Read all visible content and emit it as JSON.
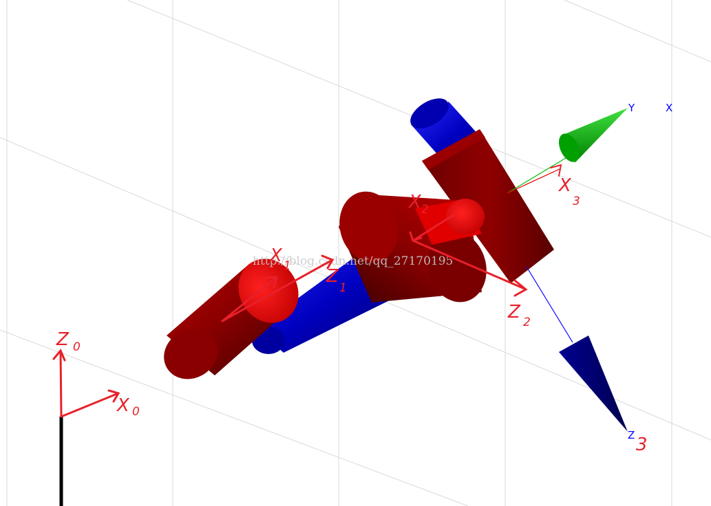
{
  "scene": {
    "background": "#ffffff",
    "grid_color": "#d9d9d9",
    "link_color": "#8b0000",
    "joint_axis_color": "#0000c8",
    "annotation_color": "#e8202a",
    "base_color": "#000000"
  },
  "axis_labels": {
    "y": "Y",
    "x": "X",
    "z": "Z",
    "y_color": "#0000ff",
    "x_color": "#0000ff",
    "z_color": "#0000ff"
  },
  "frame_arrows": {
    "y_color": "#00a000",
    "z_color": "#00007a"
  },
  "annotations": {
    "z0": {
      "main": "Z",
      "sub": "0"
    },
    "x0": {
      "main": "X",
      "sub": "0"
    },
    "x1": {
      "main": "X",
      "sub": "1"
    },
    "z1": {
      "main": "Z",
      "sub": "1"
    },
    "x2": {
      "main": "X",
      "sub": "2"
    },
    "z2": {
      "main": "Z",
      "sub": "2"
    },
    "x3": {
      "main": "X",
      "sub": "3"
    },
    "z3_sub": "3"
  },
  "watermark": "http://blog.csdn.net/qq_27170195"
}
